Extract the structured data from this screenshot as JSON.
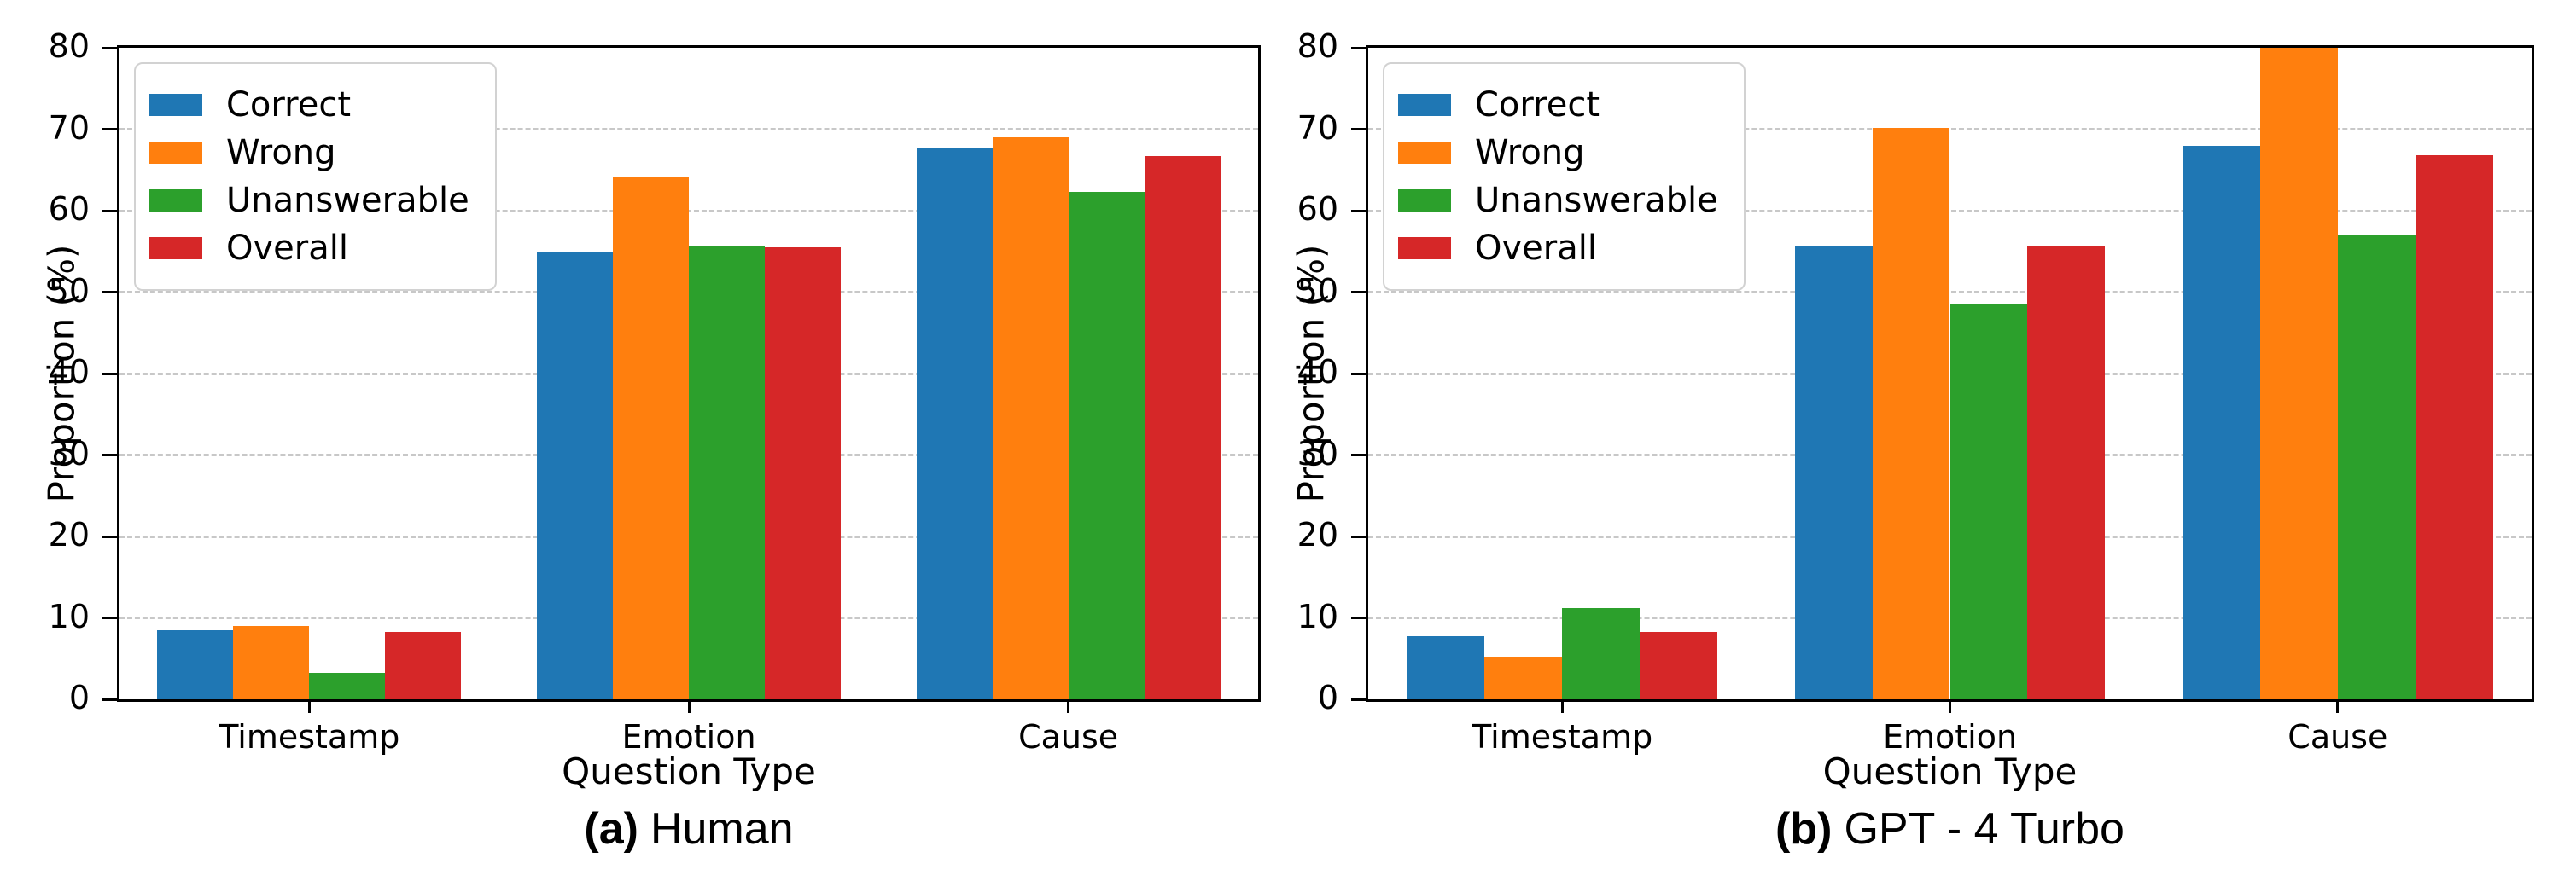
{
  "chart_data": [
    {
      "type": "bar",
      "panel": "a",
      "caption": {
        "prefix": "(a)",
        "title": "Human"
      },
      "xlabel": "Question Type",
      "ylabel": "Proportion (%)",
      "ylim": [
        0,
        80
      ],
      "yticks": [
        0,
        10,
        20,
        30,
        40,
        50,
        60,
        70,
        80
      ],
      "grid": true,
      "legend_position": "upper left",
      "categories": [
        "Timestamp",
        "Emotion",
        "Cause"
      ],
      "series": [
        {
          "name": "Correct",
          "color": "#1f77b4",
          "values": [
            8.5,
            55.0,
            67.6
          ]
        },
        {
          "name": "Wrong",
          "color": "#ff7f0e",
          "values": [
            9.0,
            64.1,
            69.0
          ]
        },
        {
          "name": "Unanswerable",
          "color": "#2ca02c",
          "values": [
            3.2,
            55.7,
            62.3
          ]
        },
        {
          "name": "Overall",
          "color": "#d62728",
          "values": [
            8.3,
            55.5,
            66.7
          ]
        }
      ]
    },
    {
      "type": "bar",
      "panel": "b",
      "caption": {
        "prefix": "(b)",
        "title": "GPT - 4 Turbo"
      },
      "xlabel": "Question Type",
      "ylabel": "Proportion (%)",
      "ylim": [
        0,
        80
      ],
      "yticks": [
        0,
        10,
        20,
        30,
        40,
        50,
        60,
        70,
        80
      ],
      "grid": true,
      "legend_position": "upper left",
      "categories": [
        "Timestamp",
        "Emotion",
        "Cause"
      ],
      "series": [
        {
          "name": "Correct",
          "color": "#1f77b4",
          "values": [
            7.8,
            55.7,
            68.0
          ]
        },
        {
          "name": "Wrong",
          "color": "#ff7f0e",
          "values": [
            5.2,
            70.2,
            80.0
          ]
        },
        {
          "name": "Unanswerable",
          "color": "#2ca02c",
          "values": [
            11.2,
            48.5,
            57.0
          ]
        },
        {
          "name": "Overall",
          "color": "#d62728",
          "values": [
            8.3,
            55.7,
            66.8
          ]
        }
      ]
    }
  ]
}
